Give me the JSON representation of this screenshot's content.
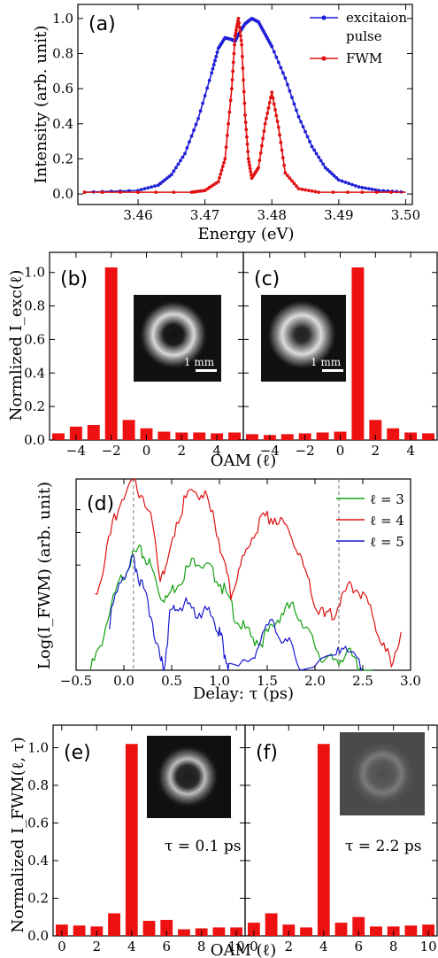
{
  "chart_data": [
    {
      "id": "a",
      "type": "line",
      "panel_label": "(a)",
      "xlabel": "Energy (eV)",
      "ylabel": "Intensity (arb. unit)",
      "xlim": [
        3.451,
        3.501
      ],
      "ylim": [
        -0.06,
        1.08
      ],
      "xticks": [
        3.46,
        3.47,
        3.48,
        3.49,
        3.5
      ],
      "xticklabels": [
        "3.46",
        "3.47",
        "3.48",
        "3.49",
        "3.50"
      ],
      "yticks": [
        0,
        0.2,
        0.4,
        0.6,
        0.8,
        1.0
      ],
      "yticklabels": [
        "0.0",
        "0.2",
        "0.4",
        "0.6",
        "0.8",
        "1.0"
      ],
      "legend": {
        "placement": "top-right",
        "entries": [
          "excitaion",
          "pulse",
          "FWM"
        ]
      },
      "series": [
        {
          "name": "excitaion pulse",
          "color": "#1f1fd6",
          "x": [
            3.452,
            3.46,
            3.463,
            3.465,
            3.467,
            3.469,
            3.471,
            3.472,
            3.473,
            3.474,
            3.4745,
            3.475,
            3.476,
            3.477,
            3.478,
            3.479,
            3.48,
            3.482,
            3.484,
            3.486,
            3.488,
            3.49,
            3.493,
            3.496,
            3.5
          ],
          "y": [
            0.01,
            0.02,
            0.05,
            0.11,
            0.23,
            0.43,
            0.69,
            0.83,
            0.89,
            0.88,
            0.87,
            0.91,
            0.97,
            1.0,
            0.98,
            0.91,
            0.84,
            0.66,
            0.44,
            0.27,
            0.15,
            0.08,
            0.04,
            0.02,
            0.01
          ]
        },
        {
          "name": "FWM",
          "color": "#e01010",
          "x": [
            3.452,
            3.468,
            3.47,
            3.472,
            3.473,
            3.474,
            3.4745,
            3.475,
            3.4755,
            3.476,
            3.4765,
            3.477,
            3.478,
            3.479,
            3.48,
            3.481,
            3.482,
            3.484,
            3.487,
            3.5
          ],
          "y": [
            0.01,
            0.01,
            0.02,
            0.07,
            0.2,
            0.6,
            0.9,
            1.0,
            0.85,
            0.45,
            0.2,
            0.09,
            0.15,
            0.4,
            0.58,
            0.38,
            0.12,
            0.03,
            0.01,
            0.01
          ]
        }
      ]
    },
    {
      "id": "b",
      "type": "bar",
      "panel_label": "(b)",
      "ylabel": "Normlized I_exc(ℓ)",
      "xlim": [
        -5.5,
        5.5
      ],
      "ylim": [
        0,
        1.12
      ],
      "categories": [
        -5,
        -4,
        -3,
        -2,
        -1,
        0,
        1,
        2,
        3,
        4,
        5
      ],
      "values": [
        0.04,
        0.08,
        0.09,
        1.03,
        0.12,
        0.07,
        0.05,
        0.045,
        0.045,
        0.04,
        0.045
      ],
      "xticks": [
        -4,
        -2,
        0,
        2,
        4
      ],
      "xticklabels": [
        "−4",
        "−2",
        "0",
        "2",
        "4"
      ],
      "yticks": [
        0,
        0.2,
        0.4,
        0.6,
        0.8,
        1.0
      ],
      "yticklabels": [
        "0.0",
        "0.2",
        "0.4",
        "0.6",
        "0.8",
        "1.0"
      ],
      "inset_scale_label": "1 mm",
      "color": "#ee1111"
    },
    {
      "id": "c",
      "type": "bar",
      "panel_label": "(c)",
      "xlim": [
        -5.5,
        5.5
      ],
      "ylim": [
        0,
        1.12
      ],
      "categories": [
        -5,
        -4,
        -3,
        -2,
        -1,
        0,
        1,
        2,
        3,
        4,
        5
      ],
      "values": [
        0.035,
        0.03,
        0.035,
        0.04,
        0.045,
        0.05,
        1.03,
        0.12,
        0.07,
        0.045,
        0.04
      ],
      "xticks": [
        -4,
        -2,
        0,
        2,
        4
      ],
      "xticklabels": [
        "−4",
        "−2",
        "0",
        "2",
        "4"
      ],
      "inset_scale_label": "1 mm",
      "color": "#ee1111"
    },
    {
      "id": "d",
      "type": "line",
      "panel_label": "(d)",
      "xlabel": "Delay: τ (ps)",
      "ylabel": "Log(I_FWM) (arb. unit)",
      "xlim": [
        -0.5,
        3.0
      ],
      "ylim": [
        0,
        1
      ],
      "xticks": [
        -0.5,
        0.0,
        0.5,
        1.0,
        1.5,
        2.0,
        2.5,
        3.0
      ],
      "xticklabels": [
        "−0.5",
        "0.0",
        "0.5",
        "1.0",
        "1.5",
        "2.0",
        "2.5",
        "3.0"
      ],
      "vlines": [
        0.1,
        2.25
      ],
      "legend": {
        "placement": "top-right",
        "entries": [
          "ℓ = 3",
          "ℓ = 4",
          "ℓ = 5"
        ]
      },
      "series": [
        {
          "name": "ℓ = 3",
          "color": "#12a012",
          "x": [
            -0.35,
            -0.25,
            -0.15,
            -0.05,
            0.05,
            0.15,
            0.22,
            0.3,
            0.38,
            0.45,
            0.55,
            0.65,
            0.75,
            0.85,
            0.95,
            1.05,
            1.15,
            1.25,
            1.35,
            1.45,
            1.55,
            1.65,
            1.75,
            1.85,
            1.95,
            2.05,
            2.15,
            2.25,
            2.35,
            2.45,
            2.6
          ],
          "y": [
            0.0,
            0.12,
            0.3,
            0.45,
            0.56,
            0.62,
            0.6,
            0.52,
            0.4,
            0.38,
            0.45,
            0.52,
            0.58,
            0.55,
            0.5,
            0.42,
            0.3,
            0.22,
            0.16,
            0.16,
            0.22,
            0.3,
            0.33,
            0.28,
            0.18,
            0.08,
            0.05,
            0.06,
            0.1,
            0.02,
            0.0
          ]
        },
        {
          "name": "ℓ = 4",
          "color": "#e01010",
          "x": [
            -0.3,
            -0.2,
            -0.1,
            0.0,
            0.1,
            0.2,
            0.3,
            0.38,
            0.45,
            0.55,
            0.65,
            0.75,
            0.85,
            0.95,
            1.05,
            1.12,
            1.2,
            1.3,
            1.4,
            1.5,
            1.6,
            1.7,
            1.8,
            1.9,
            2.0,
            2.1,
            2.2,
            2.3,
            2.4,
            2.5,
            2.6,
            2.7,
            2.8,
            2.9
          ],
          "y": [
            0.38,
            0.58,
            0.78,
            0.92,
            0.97,
            0.92,
            0.76,
            0.5,
            0.55,
            0.78,
            0.9,
            0.94,
            0.9,
            0.78,
            0.56,
            0.4,
            0.5,
            0.66,
            0.76,
            0.8,
            0.8,
            0.75,
            0.65,
            0.5,
            0.34,
            0.28,
            0.3,
            0.4,
            0.44,
            0.4,
            0.3,
            0.12,
            0.05,
            0.2
          ]
        },
        {
          "name": "ℓ = 5",
          "color": "#1a1ad0",
          "x": [
            -0.15,
            -0.05,
            0.05,
            0.1,
            0.15,
            0.22,
            0.3,
            0.38,
            0.42,
            0.48,
            0.55,
            0.65,
            0.75,
            0.85,
            0.95,
            1.0,
            1.05,
            1.1,
            1.35,
            1.45,
            1.55,
            1.65,
            1.75,
            1.85,
            2.2,
            2.3,
            2.4,
            2.5
          ],
          "y": [
            0.25,
            0.45,
            0.55,
            0.58,
            0.5,
            0.4,
            0.25,
            0.06,
            0.0,
            0.28,
            0.32,
            0.35,
            0.3,
            0.32,
            0.25,
            0.2,
            0.1,
            0.0,
            0.05,
            0.2,
            0.25,
            0.18,
            0.12,
            0.0,
            0.05,
            0.15,
            0.08,
            0.0
          ]
        }
      ]
    },
    {
      "id": "e",
      "type": "bar",
      "panel_label": "(e)",
      "ylabel": "Normalized I_FWM(ℓ, τ)",
      "xlabel": "OAM (ℓ)",
      "xlim": [
        -0.5,
        10.5
      ],
      "ylim": [
        0,
        1.12
      ],
      "categories": [
        0,
        1,
        2,
        3,
        4,
        5,
        6,
        7,
        8,
        9,
        10
      ],
      "values": [
        0.06,
        0.055,
        0.05,
        0.12,
        1.02,
        0.08,
        0.085,
        0.035,
        0.04,
        0.045,
        0.045
      ],
      "xticks": [
        0,
        2,
        4,
        6,
        8,
        10
      ],
      "xticklabels": [
        "0",
        "2",
        "4",
        "6",
        "8",
        "10"
      ],
      "yticks": [
        0,
        0.2,
        0.4,
        0.6,
        0.8,
        1.0
      ],
      "yticklabels": [
        "0.0",
        "0.2",
        "0.4",
        "0.6",
        "0.8",
        "1.0"
      ],
      "annotation": "τ = 0.1 ps",
      "color": "#ee1111"
    },
    {
      "id": "f",
      "type": "bar",
      "panel_label": "(f)",
      "xlim": [
        -0.5,
        10.5
      ],
      "ylim": [
        0,
        1.12
      ],
      "categories": [
        0,
        1,
        2,
        3,
        4,
        5,
        6,
        7,
        8,
        9,
        10
      ],
      "values": [
        0.07,
        0.12,
        0.06,
        0.045,
        1.02,
        0.07,
        0.1,
        0.05,
        0.05,
        0.055,
        0.06
      ],
      "xticks": [
        0,
        2,
        4,
        6,
        8,
        10
      ],
      "xticklabels": [
        "0",
        "2",
        "4",
        "6",
        "8",
        "10"
      ],
      "annotation": "τ = 2.2 ps",
      "color": "#ee1111"
    }
  ],
  "shared_labels": {
    "bc_xlabel": "OAM (ℓ)"
  }
}
